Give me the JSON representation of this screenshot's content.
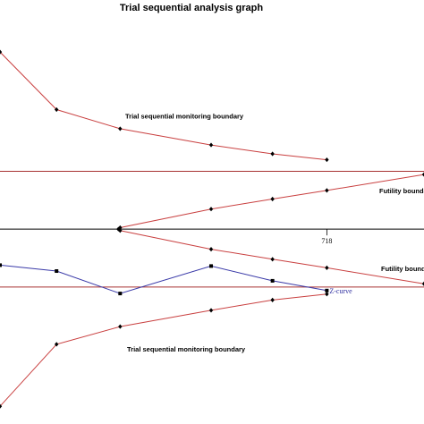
{
  "chart_data": {
    "type": "line",
    "title": "Trial sequential analysis graph",
    "x_tick_label": "718",
    "xlim": [
      0,
      960
    ],
    "ylim": [
      -6.6,
      6.7
    ],
    "horizontal_lines": [
      {
        "name": "upper_conventional",
        "y": 1.96,
        "color": "#a83232"
      },
      {
        "name": "zero",
        "y": 0,
        "color": "#000000"
      },
      {
        "name": "lower_conventional",
        "y": -1.96,
        "color": "#a83232"
      }
    ],
    "series": [
      {
        "role": "upper_tsmb",
        "label": "Trial sequential monitoring boundary",
        "color": "#c94040",
        "marker": "diamond",
        "points": [
          [
            0,
            6.0
          ],
          [
            128,
            4.05
          ],
          [
            272,
            3.4
          ],
          [
            478,
            2.85
          ],
          [
            617,
            2.55
          ],
          [
            740,
            2.35
          ]
        ]
      },
      {
        "role": "lower_tsmb",
        "label": "Trial sequential monitoring boundary",
        "color": "#c94040",
        "marker": "diamond",
        "points": [
          [
            0,
            -6.0
          ],
          [
            128,
            -3.9
          ],
          [
            272,
            -3.3
          ],
          [
            478,
            -2.75
          ],
          [
            617,
            -2.4
          ],
          [
            740,
            -2.2
          ]
        ]
      },
      {
        "role": "upper_futility",
        "label": "Futility bounda",
        "color": "#c94040",
        "marker": "diamond",
        "points": [
          [
            268,
            0
          ],
          [
            272,
            0.05
          ],
          [
            478,
            0.68
          ],
          [
            617,
            1.02
          ],
          [
            740,
            1.31
          ],
          [
            960,
            1.85
          ]
        ]
      },
      {
        "role": "lower_futility",
        "label": "Futility bounda",
        "color": "#c94040",
        "marker": "diamond",
        "points": [
          [
            272,
            -0.05
          ],
          [
            478,
            -0.68
          ],
          [
            617,
            -1.02
          ],
          [
            740,
            -1.31
          ],
          [
            960,
            -1.85
          ]
        ]
      },
      {
        "role": "z_curve",
        "label": "Z-curve",
        "color": "#3a3aa8",
        "marker": "square",
        "points": [
          [
            0,
            -1.22
          ],
          [
            128,
            -1.42
          ],
          [
            272,
            -2.18
          ],
          [
            478,
            -1.25
          ],
          [
            617,
            -1.75
          ],
          [
            740,
            -2.08
          ]
        ]
      }
    ]
  }
}
